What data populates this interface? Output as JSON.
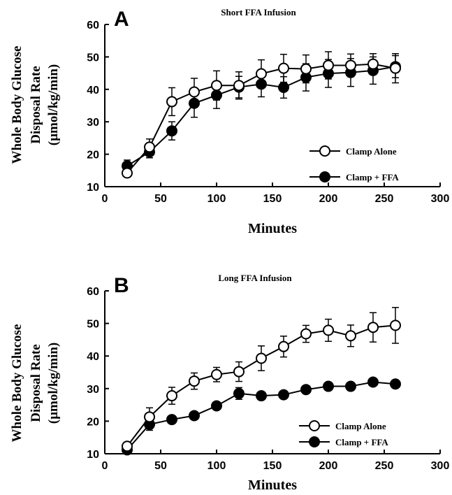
{
  "chart_data": [
    {
      "type": "line",
      "panel_label": "A",
      "title": "Short  FFA Infusion",
      "xlabel": "Minutes",
      "ylabel_lines": [
        "Whole Body Glucose",
        "Disposal Rate",
        "(µmol/kg/min)"
      ],
      "xlim": [
        0,
        300
      ],
      "ylim": [
        10,
        60
      ],
      "xticks": [
        0,
        50,
        100,
        150,
        200,
        250,
        300
      ],
      "yticks": [
        10,
        20,
        30,
        40,
        50,
        60
      ],
      "legend_position": "bottom-right",
      "x": [
        20,
        40,
        60,
        80,
        100,
        120,
        140,
        160,
        180,
        200,
        220,
        240,
        260
      ],
      "series": [
        {
          "name": "Clamp Alone",
          "marker": "open-circle",
          "values": [
            14.2,
            22.2,
            36.2,
            39.2,
            41.2,
            41.2,
            44.8,
            46.5,
            46.3,
            47.4,
            47.4,
            47.8,
            46.5
          ],
          "errors": [
            1.2,
            2.5,
            4.3,
            4.2,
            4.5,
            4.2,
            4.3,
            4.3,
            4.3,
            4.2,
            3.5,
            3.2,
            4.5
          ]
        },
        {
          "name": "Clamp + FFA",
          "marker": "filled-circle",
          "values": [
            16.4,
            20.7,
            27.2,
            35.7,
            38.2,
            40.7,
            41.6,
            40.6,
            43.7,
            44.9,
            45.2,
            45.8,
            47.0
          ],
          "errors": [
            1.8,
            1.8,
            2.8,
            4.3,
            4.1,
            3.3,
            3.9,
            3.3,
            4.2,
            4.3,
            4.3,
            4.2,
            3.4
          ]
        }
      ]
    },
    {
      "type": "line",
      "panel_label": "B",
      "title": "Long FFA Infusion",
      "xlabel": "Minutes",
      "ylabel_lines": [
        "Whole Body Glucose",
        "Disposal Rate",
        "(µmol/kg/min)"
      ],
      "xlim": [
        0,
        300
      ],
      "ylim": [
        10,
        60
      ],
      "xticks": [
        0,
        50,
        100,
        150,
        200,
        250,
        300
      ],
      "yticks": [
        10,
        20,
        30,
        40,
        50,
        60
      ],
      "legend_position": "bottom-right",
      "x": [
        20,
        40,
        60,
        80,
        100,
        120,
        140,
        160,
        180,
        200,
        220,
        240,
        260
      ],
      "series": [
        {
          "name": "Clamp  Alone",
          "marker": "open-circle",
          "values": [
            12.3,
            21.3,
            27.8,
            32.3,
            34.3,
            35.2,
            39.3,
            42.9,
            46.8,
            47.9,
            46.2,
            48.8,
            49.4
          ],
          "errors": [
            1.2,
            2.8,
            2.6,
            2.5,
            2.2,
            3.0,
            3.8,
            3.2,
            2.6,
            3.4,
            3.3,
            4.5,
            5.5
          ]
        },
        {
          "name": "Clamp + FFA",
          "marker": "filled-circle",
          "values": [
            11.2,
            19.0,
            20.5,
            21.7,
            24.7,
            28.5,
            27.8,
            28.1,
            29.7,
            30.7,
            30.7,
            32.0,
            31.4
          ],
          "errors": [
            1.0,
            1.8,
            0.5,
            0.5,
            0.5,
            1.8,
            0.5,
            0.5,
            0.5,
            0.5,
            0.5,
            0.5,
            0.5
          ]
        }
      ]
    }
  ]
}
